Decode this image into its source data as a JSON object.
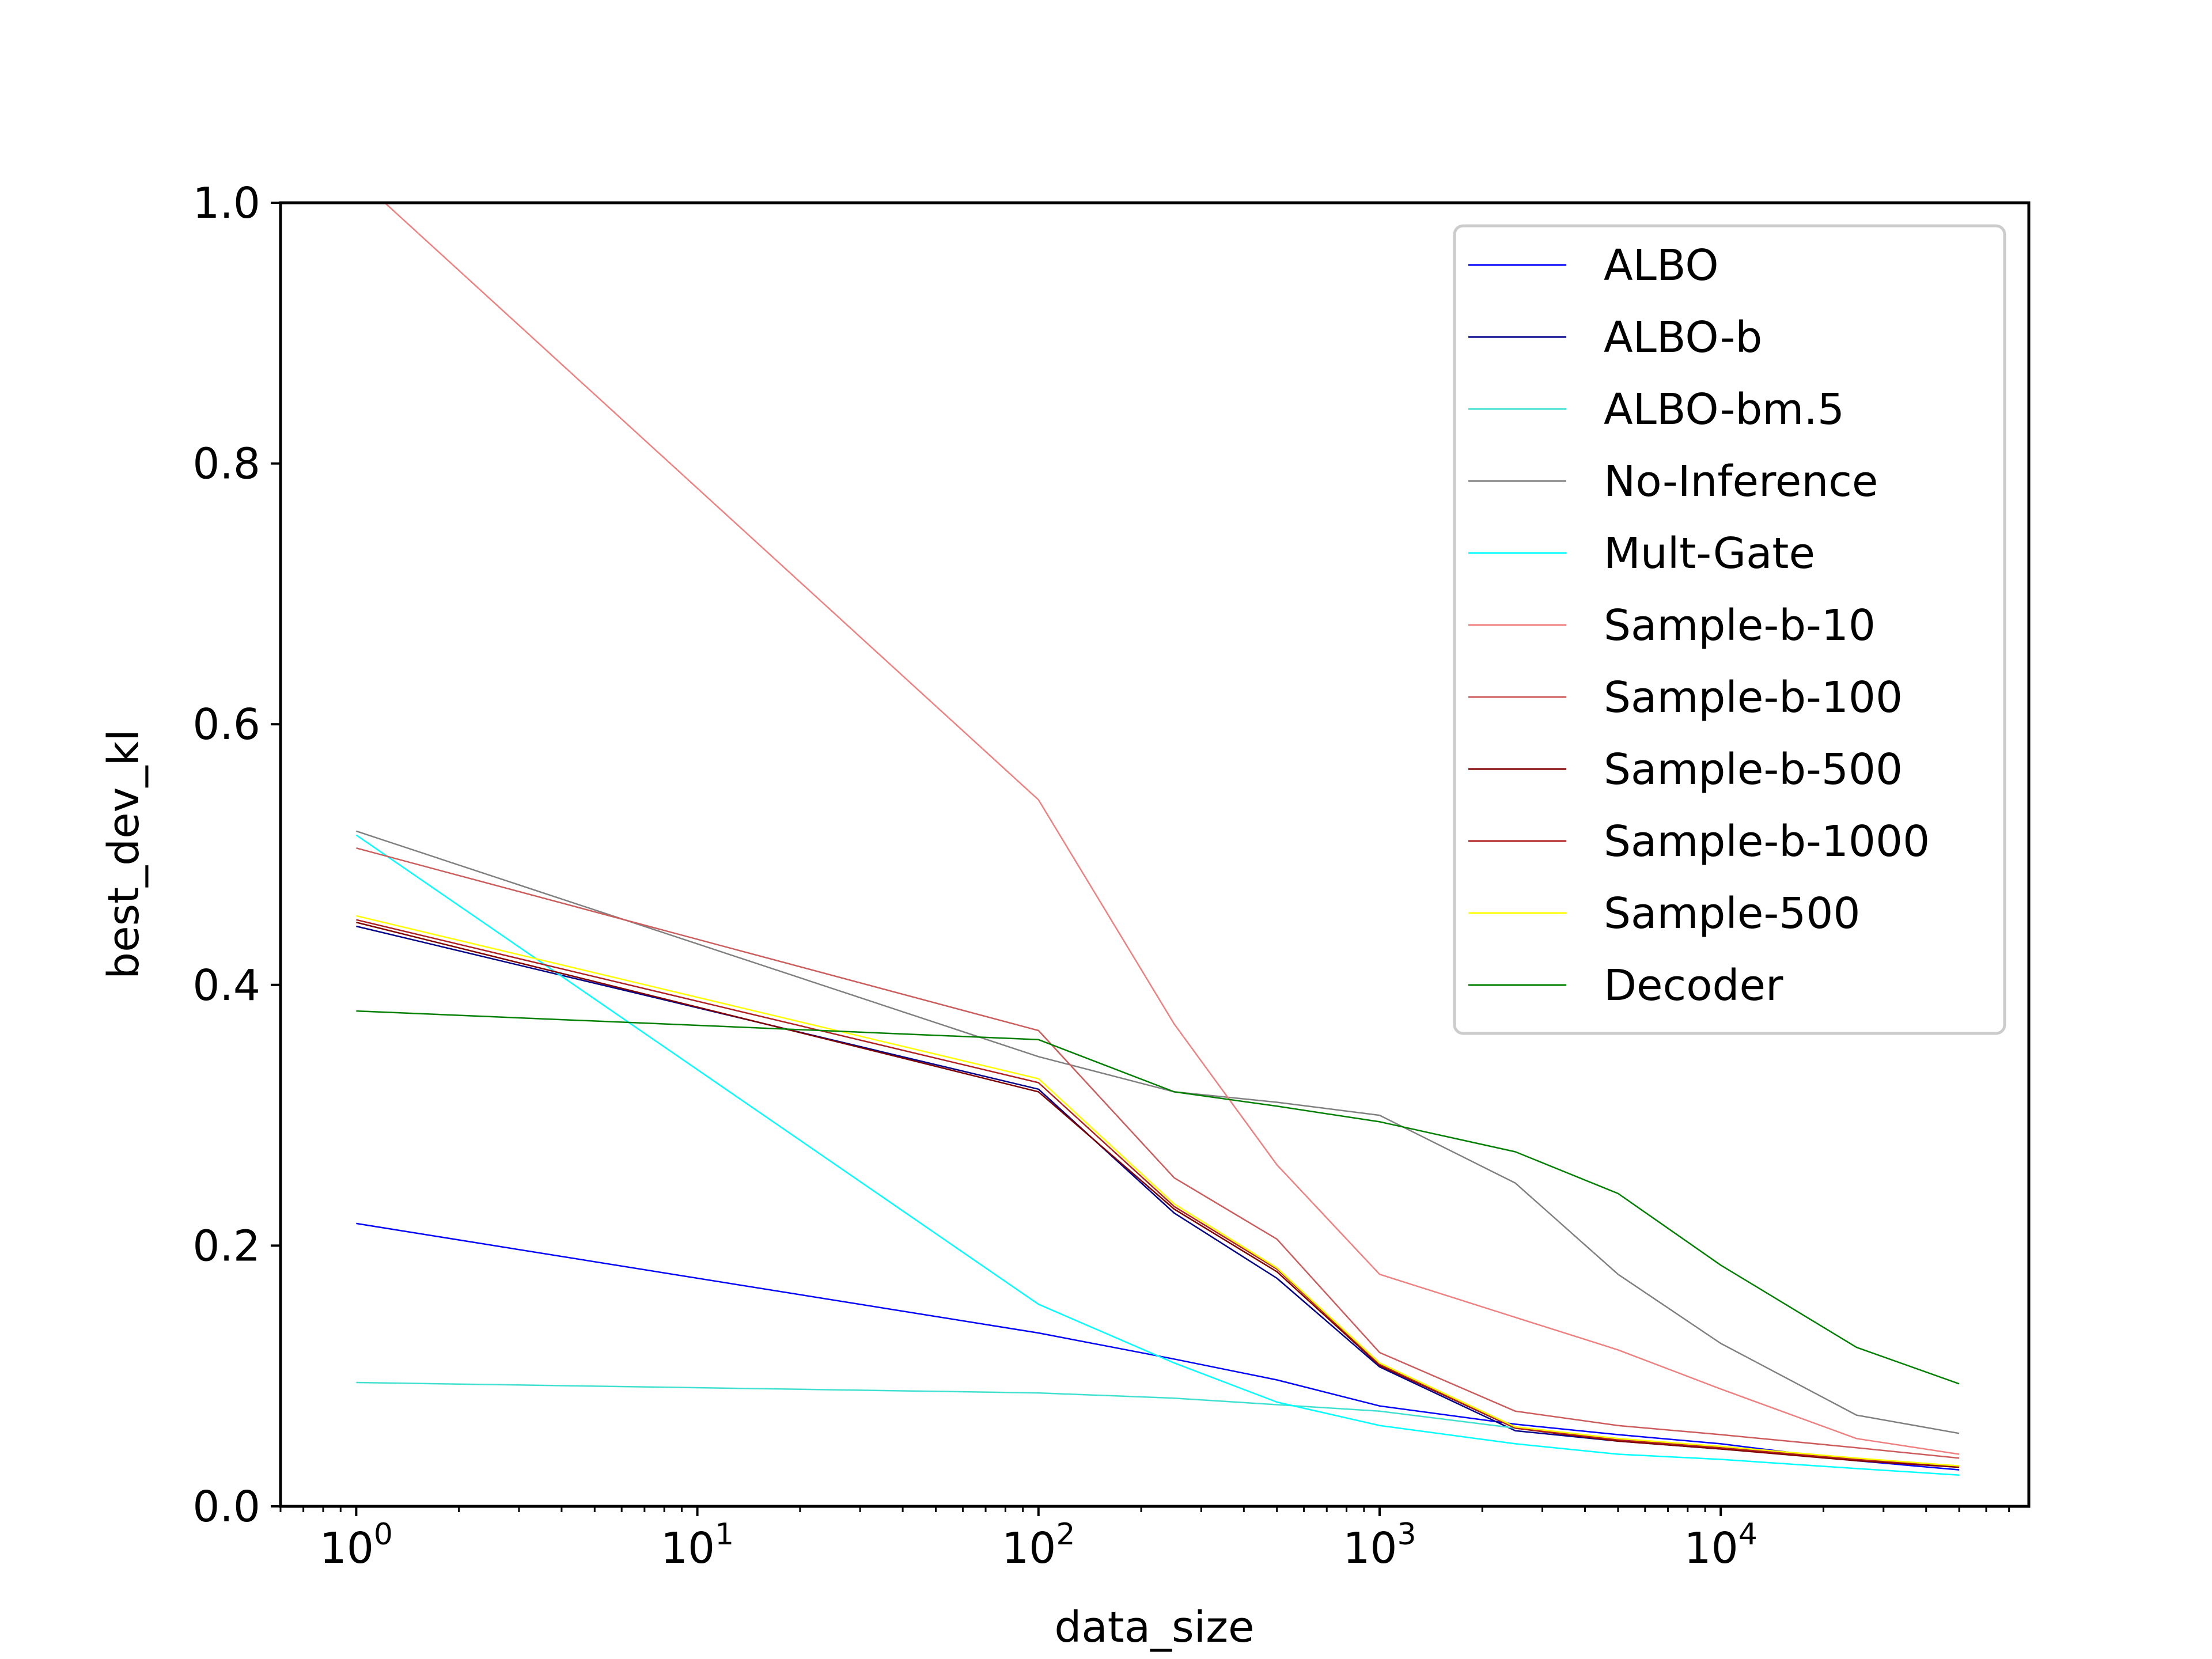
{
  "chart_data": {
    "type": "line",
    "title": "",
    "xlabel": "data_size",
    "ylabel": "best_dev_kl",
    "xscale": "log",
    "xlim": [
      0.6,
      80000
    ],
    "ylim": [
      0,
      1.0
    ],
    "grid": false,
    "legend_position": "upper right",
    "x_ticks": [
      1,
      10,
      100,
      1000,
      10000
    ],
    "x_tick_labels": [
      {
        "base": "10",
        "exp": "0"
      },
      {
        "base": "10",
        "exp": "1"
      },
      {
        "base": "10",
        "exp": "2"
      },
      {
        "base": "10",
        "exp": "3"
      },
      {
        "base": "10",
        "exp": "4"
      }
    ],
    "y_ticks": [
      0.0,
      0.2,
      0.4,
      0.6,
      0.8,
      1.0
    ],
    "y_tick_labels": [
      "0.0",
      "0.2",
      "0.4",
      "0.6",
      "0.8",
      "1.0"
    ],
    "x": [
      1,
      100,
      250,
      500,
      1000,
      2500,
      5000,
      10000,
      25000,
      50000
    ],
    "series": [
      {
        "name": "ALBO",
        "color": "#0000ff",
        "values": [
          0.217,
          0.133,
          0.113,
          0.097,
          0.077,
          0.063,
          0.055,
          0.048,
          0.035,
          0.028
        ]
      },
      {
        "name": "ALBO-b",
        "color": "#00008b",
        "values": [
          0.445,
          0.32,
          0.225,
          0.175,
          0.107,
          0.058,
          0.05,
          0.044,
          0.036,
          0.03
        ]
      },
      {
        "name": "ALBO-bm.5",
        "color": "#40e0d0",
        "values": [
          0.095,
          0.087,
          0.083,
          0.078,
          0.073,
          0.06,
          0.052,
          0.045,
          0.036,
          0.03
        ]
      },
      {
        "name": "No-Inference",
        "color": "#808080",
        "values": [
          0.518,
          0.345,
          0.318,
          0.31,
          0.3,
          0.248,
          0.178,
          0.125,
          0.07,
          0.056
        ]
      },
      {
        "name": "Mult-Gate",
        "color": "#00ffff",
        "values": [
          0.515,
          0.155,
          0.11,
          0.08,
          0.062,
          0.048,
          0.04,
          0.036,
          0.029,
          0.024
        ]
      },
      {
        "name": "Sample-b-10",
        "color": "#f08080",
        "values": [
          1.02,
          0.542,
          0.37,
          0.262,
          0.178,
          0.145,
          0.12,
          0.09,
          0.052,
          0.04
        ]
      },
      {
        "name": "Sample-b-100",
        "color": "#cd5c5c",
        "values": [
          0.505,
          0.365,
          0.252,
          0.205,
          0.118,
          0.073,
          0.062,
          0.055,
          0.045,
          0.037
        ]
      },
      {
        "name": "Sample-b-500",
        "color": "#800000",
        "values": [
          0.448,
          0.318,
          0.228,
          0.18,
          0.108,
          0.06,
          0.05,
          0.044,
          0.035,
          0.03
        ]
      },
      {
        "name": "Sample-b-1000",
        "color": "#b22222",
        "values": [
          0.45,
          0.325,
          0.23,
          0.182,
          0.109,
          0.06,
          0.051,
          0.045,
          0.036,
          0.031
        ]
      },
      {
        "name": "Sample-500",
        "color": "#ffff00",
        "values": [
          0.453,
          0.328,
          0.232,
          0.183,
          0.11,
          0.061,
          0.052,
          0.046,
          0.037,
          0.031
        ]
      },
      {
        "name": "Decoder",
        "color": "#008000",
        "values": [
          0.38,
          0.358,
          0.318,
          0.307,
          0.295,
          0.272,
          0.24,
          0.185,
          0.122,
          0.094
        ]
      }
    ]
  }
}
